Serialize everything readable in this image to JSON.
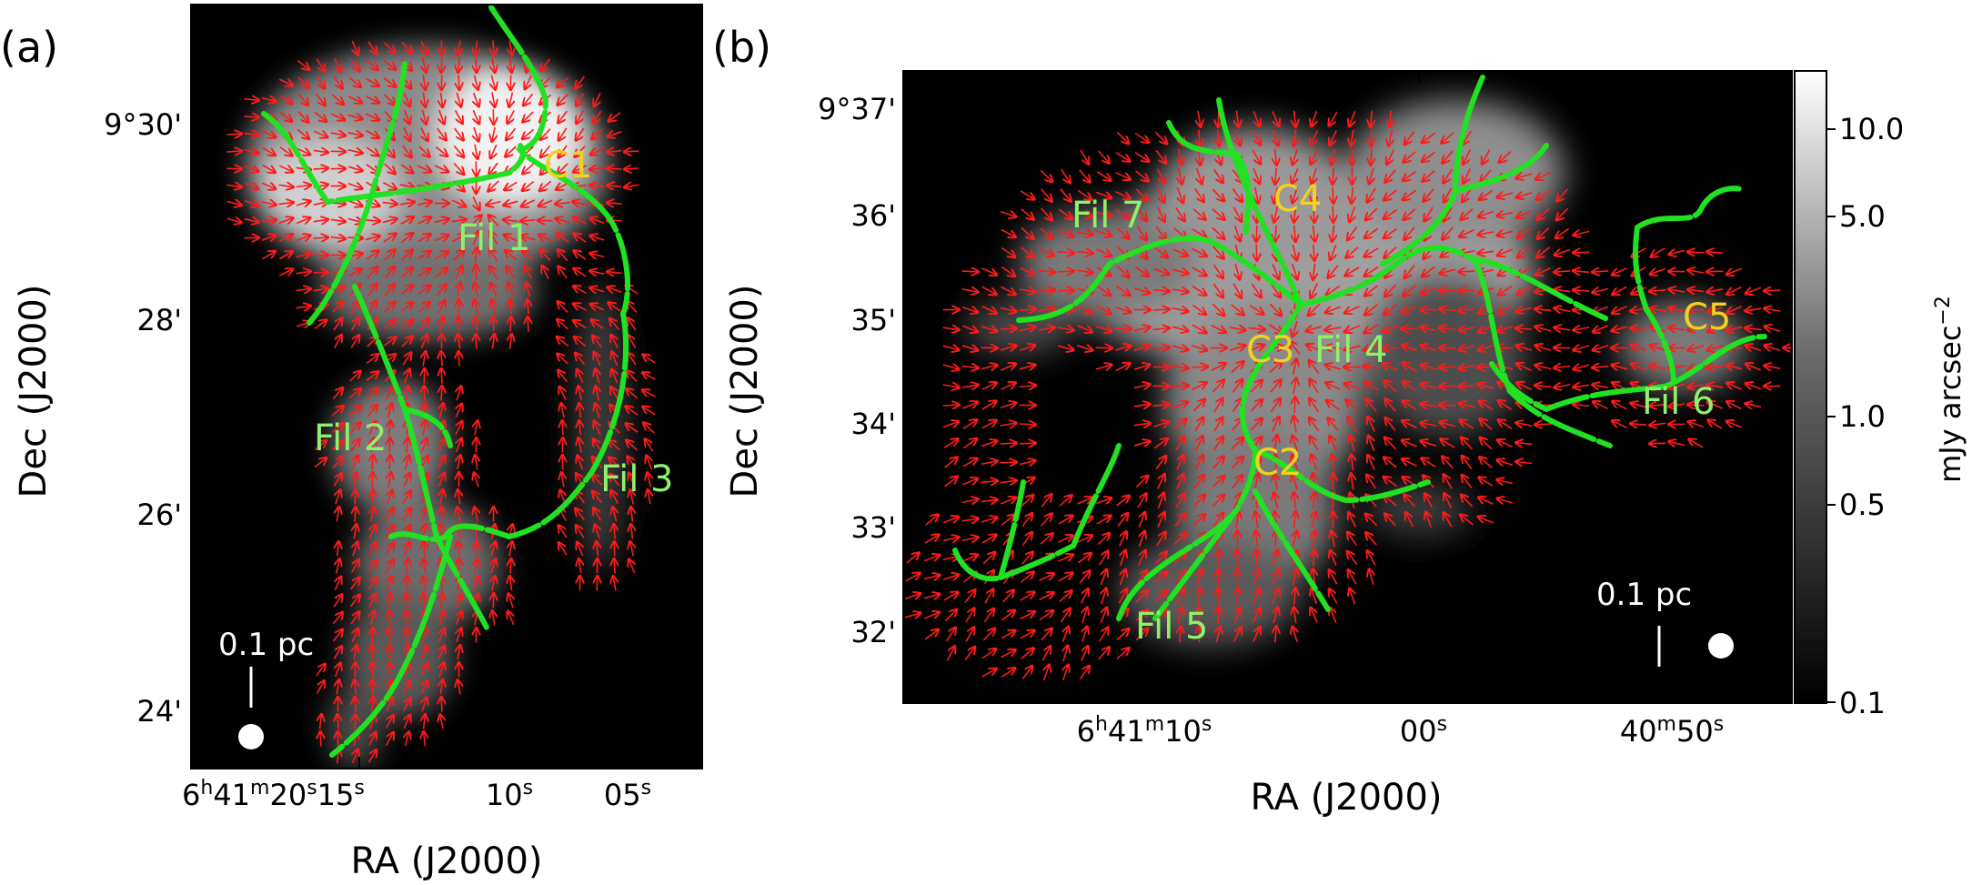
{
  "panels": [
    {
      "id": "a",
      "label": "(a)",
      "xlabel": "RA (J2000)",
      "ylabel": "Dec (J2000)",
      "dec_ticks": [
        {
          "label": "9°30'"
        },
        {
          "label": "28'"
        },
        {
          "label": "26'"
        },
        {
          "label": "24'"
        }
      ],
      "ra_ticks": [
        {
          "h": "6",
          "m": "41",
          "s": "20",
          "ms": "15"
        },
        {
          "s": "10"
        },
        {
          "s": "05"
        }
      ],
      "cores": [
        {
          "label": "C1"
        }
      ],
      "filaments": [
        {
          "label": "Fil 1"
        },
        {
          "label": "Fil 2"
        },
        {
          "label": "Fil 3"
        }
      ],
      "scalebar": "0.1 pc"
    },
    {
      "id": "b",
      "label": "(b)",
      "xlabel": "RA (J2000)",
      "ylabel": "Dec (J2000)",
      "dec_ticks": [
        {
          "label": "9°37'"
        },
        {
          "label": "36'"
        },
        {
          "label": "35'"
        },
        {
          "label": "34'"
        },
        {
          "label": "33'"
        },
        {
          "label": "32'"
        }
      ],
      "ra_ticks": [
        {
          "h": "6",
          "m": "41",
          "s": "10"
        },
        {
          "s": "00"
        },
        {
          "m": "40",
          "s": "50"
        }
      ],
      "cores": [
        {
          "label": "C2"
        },
        {
          "label": "C3"
        },
        {
          "label": "C4"
        },
        {
          "label": "C5"
        }
      ],
      "filaments": [
        {
          "label": "Fil 4"
        },
        {
          "label": "Fil 5"
        },
        {
          "label": "Fil 6"
        },
        {
          "label": "Fil 7"
        }
      ],
      "scalebar": "0.1 pc"
    }
  ],
  "colorbar": {
    "label": "mJy arcsec",
    "label_exp": "−2",
    "ticks": [
      "10.0",
      "5.0",
      "1.0",
      "0.5",
      "0.1"
    ],
    "scale": "log",
    "colormap": "gray"
  },
  "colors": {
    "filament": "#22e022",
    "vector": "#ff1a1a",
    "core_text": "#f1d21c",
    "fil_text": "#8ff06a"
  }
}
